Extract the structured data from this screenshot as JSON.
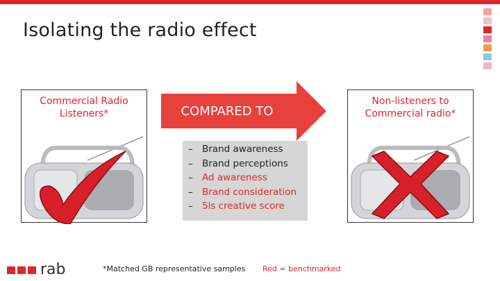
{
  "title": "Isolating the radio effect",
  "left_panel": {
    "label": "Commercial Radio Listeners*"
  },
  "arrow": {
    "label": "COMPARED TO"
  },
  "right_panel": {
    "label": "Non-listeners to Commercial radio*"
  },
  "list": {
    "items": [
      {
        "text": "Brand awareness",
        "color": "#222222"
      },
      {
        "text": "Brand perceptions",
        "color": "#222222"
      },
      {
        "text": "Ad awareness",
        "color": "#e0262b"
      },
      {
        "text": "Brand consideration",
        "color": "#e0262b"
      },
      {
        "text": "5ls creative score",
        "color": "#e0262b"
      }
    ]
  },
  "footnote": "*Matched GB representative samples",
  "legend_note": "Red = benchmarked",
  "logo": "rab"
}
